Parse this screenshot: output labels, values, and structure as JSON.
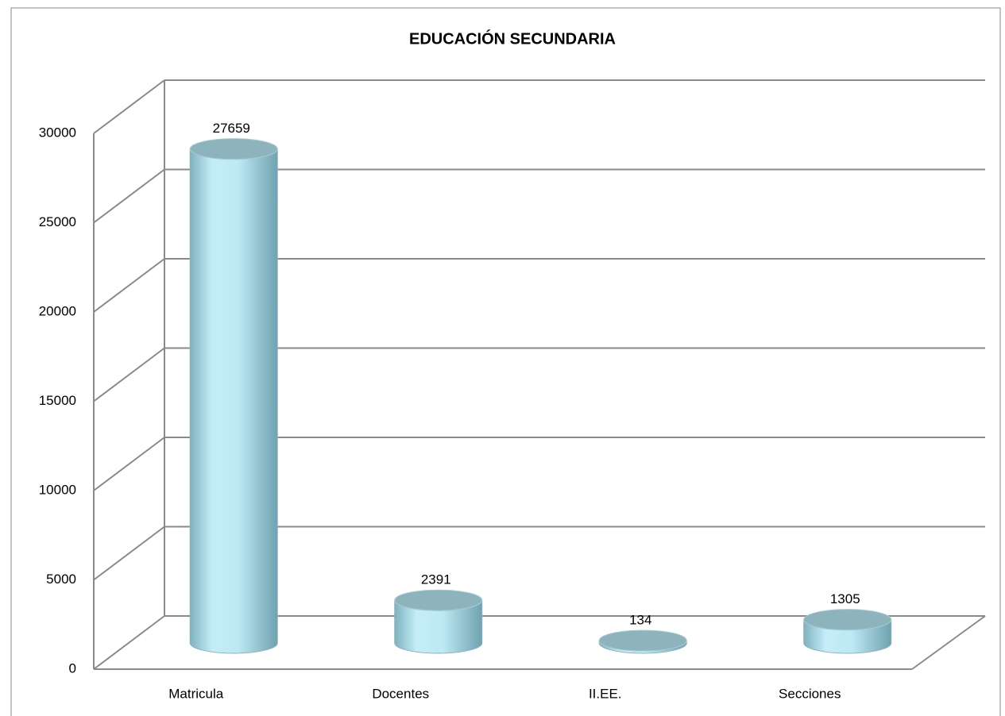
{
  "chart_data": {
    "type": "bar",
    "title": "EDUCACIÓN SECUNDARIA",
    "categories": [
      "Matricula",
      "Docentes",
      "II.EE.",
      "Secciones"
    ],
    "values": [
      27659,
      2391,
      134,
      1305
    ],
    "color": "#bde9f4",
    "ylim": [
      0,
      30000
    ],
    "yticks": [
      0,
      5000,
      10000,
      15000,
      20000,
      25000,
      30000
    ],
    "grid": true
  }
}
